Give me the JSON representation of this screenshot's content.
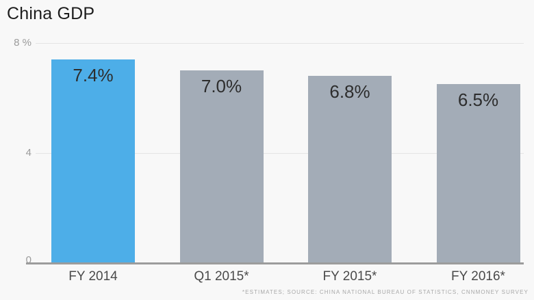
{
  "title": "China GDP",
  "source": "*ESTIMATES; SOURCE: CHINA NATIONAL BUREAU OF STATISTICS, CNNMONEY SURVEY",
  "colors": {
    "background": "#f8f8f8",
    "highlight_bar": "#4daee8",
    "muted_bar": "#a3acb7",
    "baseline": "#9c9c9c",
    "gridline": "#e5e5e5",
    "title_text": "#1d1d1d",
    "value_text": "#2d2d2d",
    "axis_label_text": "#4a4a4a",
    "tick_text": "#9b9b9b",
    "source_text": "#a8a8a8"
  },
  "chart_data": {
    "type": "bar",
    "title": "China GDP",
    "categories": [
      "FY 2014",
      "Q1 2015*",
      "FY 2015*",
      "FY 2016*"
    ],
    "values": [
      7.4,
      7.0,
      6.8,
      6.5
    ],
    "value_labels": [
      "7.4%",
      "7.0%",
      "6.8%",
      "6.5%"
    ],
    "bar_colors": [
      "#4daee8",
      "#a3acb7",
      "#a3acb7",
      "#a3acb7"
    ],
    "highlight_index": 0,
    "ylim": [
      0,
      8
    ],
    "yticks": [
      {
        "value": 8,
        "label": "8 %"
      },
      {
        "value": 4,
        "label": "4"
      },
      {
        "value": 0,
        "label": "0"
      }
    ],
    "grid": "horizontal-light",
    "legend": "none",
    "xlabel": "",
    "ylabel": "",
    "source_note": "*ESTIMATES; SOURCE: CHINA NATIONAL BUREAU OF STATISTICS, CNNMONEY SURVEY"
  }
}
